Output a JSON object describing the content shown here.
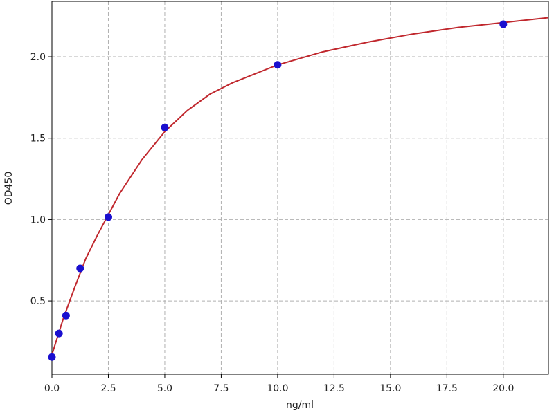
{
  "chart_data": {
    "type": "scatter",
    "xlabel": "ng/ml",
    "ylabel": "OD450",
    "xlim": [
      0,
      22
    ],
    "ylim": [
      0.05,
      2.34
    ],
    "xticks": [
      {
        "value": 0,
        "label": "0.0"
      },
      2.5,
      {
        "value": 5,
        "label": "5.0"
      },
      7.5,
      {
        "value": 10,
        "label": "10.0"
      },
      12.5,
      {
        "value": 15,
        "label": "15.0"
      },
      17.5,
      {
        "value": 20,
        "label": "20.0"
      }
    ],
    "yticks": [
      0.5,
      {
        "value": 1,
        "label": "1.0"
      },
      1.5,
      {
        "value": 2,
        "label": "2.0"
      }
    ],
    "grid": true,
    "series": [
      {
        "type": "line",
        "color": "#c0272d",
        "x": [
          0,
          0.5,
          1,
          1.5,
          2,
          3,
          4,
          5,
          6,
          7,
          8,
          10,
          12,
          14,
          16,
          18,
          20,
          22
        ],
        "values": [
          0.17,
          0.39,
          0.58,
          0.76,
          0.9,
          1.16,
          1.37,
          1.54,
          1.67,
          1.77,
          1.84,
          1.95,
          2.03,
          2.09,
          2.14,
          2.18,
          2.21,
          2.24
        ]
      },
      {
        "type": "scatter",
        "color": "#1a0fcf",
        "x": [
          0,
          0.312,
          0.625,
          1.25,
          2.5,
          5,
          10,
          20
        ],
        "values": [
          0.155,
          0.3,
          0.41,
          0.7,
          1.015,
          1.565,
          1.95,
          2.2
        ]
      }
    ]
  }
}
